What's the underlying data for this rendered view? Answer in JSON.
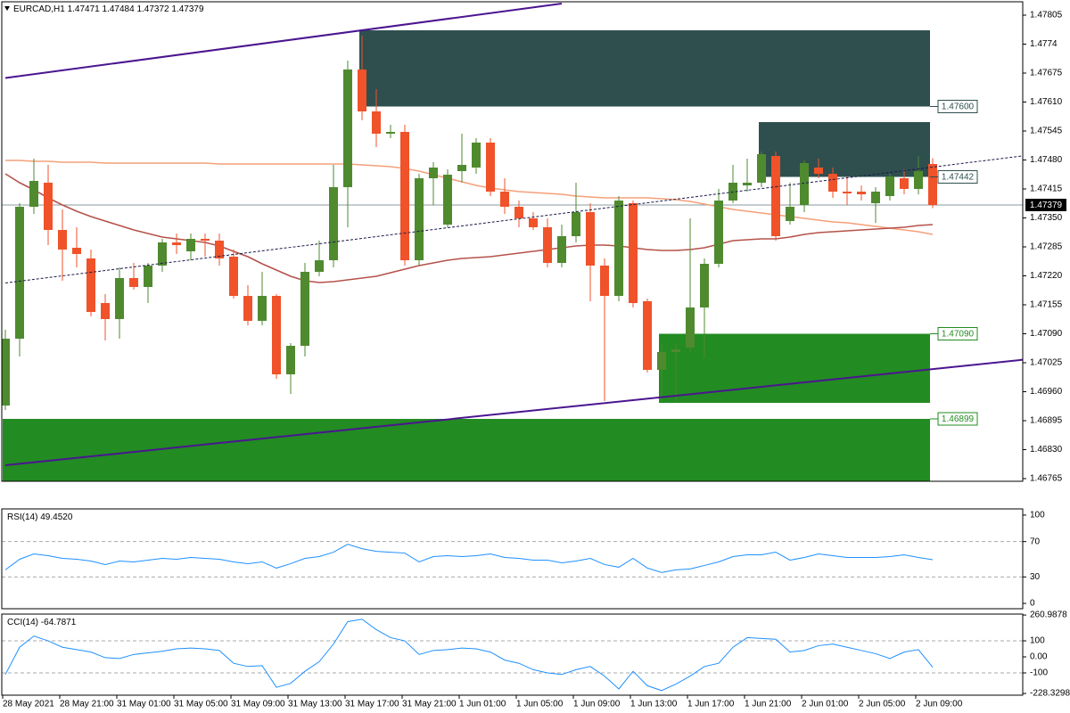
{
  "chart_data": [
    {
      "type": "candlestick",
      "title": "EURCAD,H1",
      "categories": [
        "28 May 2021",
        null,
        null,
        null,
        "28 May 21:00",
        null,
        null,
        null,
        "31 May 01:00",
        null,
        null,
        null,
        "31 May 05:00",
        null,
        null,
        null,
        "31 May 09:00",
        null,
        null,
        null,
        "31 May 13:00",
        null,
        null,
        null,
        "31 May 17:00",
        null,
        null,
        null,
        "31 May 21:00",
        null,
        null,
        null,
        "1 Jun 01:00",
        null,
        null,
        null,
        "1 Jun 05:00",
        null,
        null,
        null,
        "1 Jun 09:00",
        null,
        null,
        null,
        "1 Jun 13:00",
        null,
        null,
        null,
        "1 Jun 17:00",
        null,
        null,
        null,
        "1 Jun 21:00",
        null,
        null,
        null,
        "2 Jun 01:00",
        null,
        null,
        null,
        "2 Jun 05:00",
        null,
        null,
        null,
        "2 Jun 09:00",
        null
      ],
      "open": [
        1.46929,
        1.47079,
        1.47375,
        1.47429,
        1.47323,
        1.47283,
        1.47259,
        1.47159,
        1.47123,
        1.47215,
        1.47195,
        1.47243,
        1.47295,
        1.47275,
        1.47303,
        1.47299,
        1.47263,
        1.47175,
        1.47119,
        1.47175,
        1.46999,
        1.47063,
        1.47229,
        1.47255,
        1.47419,
        1.47683,
        1.47589,
        1.47539,
        1.47543,
        1.47255,
        1.47439,
        1.47335,
        1.47455,
        1.47463,
        1.47519,
        1.47409,
        1.47375,
        1.47349,
        1.47329,
        1.47249,
        1.47309,
        1.47363,
        1.47243,
        1.47175,
        1.47383,
        1.47163,
        1.47009,
        1.47049,
        1.47059,
        1.47149,
        1.47247,
        1.47389,
        1.47423,
        1.47429,
        1.47489,
        1.47343,
        1.47379,
        1.47463,
        1.47449,
        1.47409,
        1.47409,
        1.47383,
        1.47399,
        1.47439,
        1.47415,
        1.47471
      ],
      "high": [
        1.47099,
        1.47383,
        1.47483,
        1.47469,
        1.47369,
        1.47329,
        1.47279,
        1.47179,
        1.47239,
        1.47249,
        1.47249,
        1.47303,
        1.47315,
        1.47315,
        1.47315,
        1.47315,
        1.47279,
        1.47199,
        1.47229,
        1.47179,
        1.47069,
        1.47249,
        1.47299,
        1.47469,
        1.47703,
        1.47759,
        1.47639,
        1.47559,
        1.47559,
        1.47449,
        1.47475,
        1.47459,
        1.47539,
        1.47529,
        1.47529,
        1.47439,
        1.47389,
        1.47363,
        1.47349,
        1.47335,
        1.47429,
        1.47383,
        1.47259,
        1.47399,
        1.47389,
        1.47169,
        1.47069,
        1.47069,
        1.47349,
        1.47259,
        1.47415,
        1.47469,
        1.47483,
        1.47499,
        1.47499,
        1.47429,
        1.47479,
        1.47483,
        1.47463,
        1.47443,
        1.47423,
        1.47419,
        1.47449,
        1.47459,
        1.47489,
        1.47484
      ],
      "low": [
        1.46919,
        1.47039,
        1.47359,
        1.47289,
        1.47209,
        1.47239,
        1.47129,
        1.47075,
        1.47079,
        1.47189,
        1.47159,
        1.47229,
        1.47269,
        1.47255,
        1.47263,
        1.47243,
        1.47169,
        1.47109,
        1.47109,
        1.46989,
        1.46955,
        1.47039,
        1.47219,
        1.47239,
        1.47329,
        1.47569,
        1.47509,
        1.47529,
        1.47243,
        1.47243,
        1.47379,
        1.47329,
        1.47429,
        1.47449,
        1.47399,
        1.47359,
        1.47329,
        1.47323,
        1.47239,
        1.47239,
        1.47295,
        1.47163,
        1.46939,
        1.47163,
        1.47149,
        1.47003,
        1.46939,
        1.46939,
        1.47049,
        1.47035,
        1.47239,
        1.47383,
        1.47409,
        1.47419,
        1.47299,
        1.47335,
        1.47363,
        1.47439,
        1.47395,
        1.47379,
        1.47389,
        1.47339,
        1.47389,
        1.47403,
        1.47403,
        1.47372
      ],
      "close": [
        1.47079,
        1.47375,
        1.47433,
        1.47323,
        1.47279,
        1.47269,
        1.47139,
        1.47123,
        1.47215,
        1.47195,
        1.47243,
        1.47295,
        1.47289,
        1.47303,
        1.47299,
        1.47259,
        1.47175,
        1.47119,
        1.47175,
        1.46999,
        1.47063,
        1.47229,
        1.47255,
        1.47419,
        1.47683,
        1.47589,
        1.47539,
        1.47543,
        1.47255,
        1.47439,
        1.47463,
        1.47447,
        1.47469,
        1.47519,
        1.47409,
        1.47375,
        1.47349,
        1.47329,
        1.47249,
        1.47309,
        1.47363,
        1.47243,
        1.47175,
        1.47389,
        1.47159,
        1.47009,
        1.47049,
        1.47055,
        1.47149,
        1.47247,
        1.47389,
        1.47429,
        1.47429,
        1.47493,
        1.47309,
        1.47375,
        1.47473,
        1.47449,
        1.47409,
        1.47405,
        1.47403,
        1.47409,
        1.47443,
        1.47415,
        1.47455,
        1.47379
      ],
      "up_color": "#4f8a2f",
      "down_color": "#f0522a",
      "series": [
        {
          "color": "#f4a07a",
          "values": [
            1.47479,
            1.47479,
            1.47477,
            1.47477,
            1.47475,
            1.47475,
            1.47475,
            1.47473,
            1.47473,
            1.47473,
            1.47473,
            1.47473,
            1.47473,
            1.47473,
            1.47473,
            1.47471,
            1.47471,
            1.47471,
            1.47471,
            1.47471,
            1.47471,
            1.47471,
            1.47471,
            1.47471,
            1.47471,
            1.47469,
            1.47467,
            1.47465,
            1.47461,
            1.47455,
            1.47447,
            1.47439,
            1.47431,
            1.47423,
            1.47417,
            1.47413,
            1.47409,
            1.47407,
            1.47405,
            1.47403,
            1.47399,
            1.47397,
            1.47395,
            1.47395,
            1.47395,
            1.47395,
            1.47393,
            1.47391,
            1.47387,
            1.47381,
            1.47375,
            1.47369,
            1.47365,
            1.47361,
            1.47357,
            1.47353,
            1.47349,
            1.47345,
            1.47341,
            1.47339,
            1.47335,
            1.47331,
            1.47327,
            1.47323,
            1.47319,
            1.47313
          ]
        },
        {
          "color": "#b5524a",
          "values": [
            1.47449,
            1.47429,
            1.47413,
            1.47395,
            1.47379,
            1.47365,
            1.47353,
            1.47343,
            1.47333,
            1.47323,
            1.47315,
            1.47307,
            1.47303,
            1.47299,
            1.47295,
            1.47287,
            1.47275,
            1.47263,
            1.47247,
            1.47233,
            1.47219,
            1.47209,
            1.47205,
            1.47207,
            1.47211,
            1.47215,
            1.47219,
            1.47227,
            1.47235,
            1.47243,
            1.47249,
            1.47255,
            1.47259,
            1.47261,
            1.47263,
            1.47267,
            1.47271,
            1.47275,
            1.47279,
            1.47283,
            1.47287,
            1.47289,
            1.47289,
            1.47287,
            1.47283,
            1.47279,
            1.47277,
            1.47277,
            1.47279,
            1.47283,
            1.47291,
            1.47299,
            1.47301,
            1.47303,
            1.47303,
            1.47307,
            1.47313,
            1.47317,
            1.47319,
            1.47321,
            1.47323,
            1.47325,
            1.47327,
            1.47329,
            1.47333,
            1.47335
          ]
        }
      ],
      "zones": [
        {
          "start": 25,
          "end": 65,
          "high": 1.47771,
          "low": {
            "value": 1.476,
            "label": "1.47600"
          },
          "color": "#2f4f4f"
        },
        {
          "start": 53,
          "end": 65,
          "high": 1.47565,
          "low": {
            "value": 1.47442,
            "label": "1.47442"
          },
          "color": "#2f4f4f"
        },
        {
          "start": 46,
          "end": 65,
          "high": {
            "value": 1.4709,
            "label": "1.47090"
          },
          "low": 1.46935,
          "color": "#228b22"
        },
        {
          "start": 0,
          "end": 65,
          "high": {
            "value": 1.46899,
            "label": "1.46899"
          },
          "low": 1.46759,
          "color": "#228b22"
        }
      ],
      "trendlines": [
        {
          "start": [
            0,
            1.47664
          ],
          "end": [
            39,
            1.47831
          ],
          "color": "#4b1590",
          "dashed": false
        },
        {
          "start": [
            0,
            1.46795
          ],
          "end": [
            72,
            1.47034
          ],
          "color": "#4b1590",
          "dashed": false
        },
        {
          "start": [
            0,
            1.47204
          ],
          "end": [
            72,
            1.47492
          ],
          "color": "#1a1a4a",
          "dashed": true
        }
      ],
      "ylim": [
        1.46759,
        1.47839
      ],
      "yticks": [
        1.47805,
        1.4774,
        1.47675,
        {
          "value": 1.4761,
          "label": "1.47610"
        },
        1.47545,
        {
          "value": 1.4748,
          "label": "1.47480"
        },
        1.47415,
        {
          "value": 1.4735,
          "label": "1.47350"
        },
        1.47285,
        {
          "value": 1.4722,
          "label": "1.47220"
        },
        1.47155,
        {
          "value": 1.4709,
          "label": "1.47090"
        },
        1.47025,
        {
          "value": 1.4696,
          "label": "1.46960"
        },
        1.46895,
        {
          "value": 1.4683,
          "label": "1.46830"
        },
        1.46765
      ]
    },
    {
      "type": "line",
      "title": "RSI(14)",
      "value_label": "49.4520",
      "color": "#1e90ff",
      "values": [
        38,
        50,
        56,
        54,
        51,
        50,
        48,
        44,
        48,
        47,
        49,
        51,
        50,
        52,
        51,
        50,
        47,
        45,
        47,
        40,
        45,
        51,
        53,
        58,
        67,
        62,
        59,
        58,
        57,
        47,
        53,
        54,
        53,
        54,
        56,
        52,
        51,
        49,
        49,
        46,
        48,
        51,
        44,
        41,
        51,
        40,
        35,
        38,
        39,
        43,
        47,
        53,
        55,
        55,
        58,
        49,
        52,
        56,
        54,
        52,
        52,
        52,
        53,
        55,
        52,
        49.452
      ],
      "ylim": [
        -6,
        107
      ],
      "yticks": [
        100,
        70,
        30,
        0
      ],
      "levels": [
        70,
        30
      ]
    },
    {
      "type": "line",
      "title": "CCI(14)",
      "value_label": "-64.7871",
      "color": "#1e90ff",
      "values": [
        -110,
        60,
        130,
        100,
        60,
        45,
        30,
        -5,
        -10,
        15,
        25,
        35,
        50,
        55,
        50,
        40,
        -40,
        -60,
        -55,
        -190,
        -165,
        -90,
        -30,
        80,
        220,
        235,
        170,
        120,
        100,
        15,
        40,
        45,
        55,
        50,
        30,
        -20,
        -40,
        -80,
        -100,
        -110,
        -80,
        -60,
        -120,
        -200,
        -90,
        -180,
        -210,
        -170,
        -120,
        -60,
        -40,
        60,
        120,
        115,
        110,
        30,
        40,
        70,
        80,
        60,
        40,
        20,
        -10,
        30,
        45,
        -64.7871
      ],
      "ylim": [
        -239,
        267
      ],
      "yticks": [
        260.9878,
        100,
        {
          "value": 0,
          "label": "0.00"
        },
        -100,
        -228.3298
      ],
      "levels": [
        100,
        -100
      ]
    }
  ]
}
